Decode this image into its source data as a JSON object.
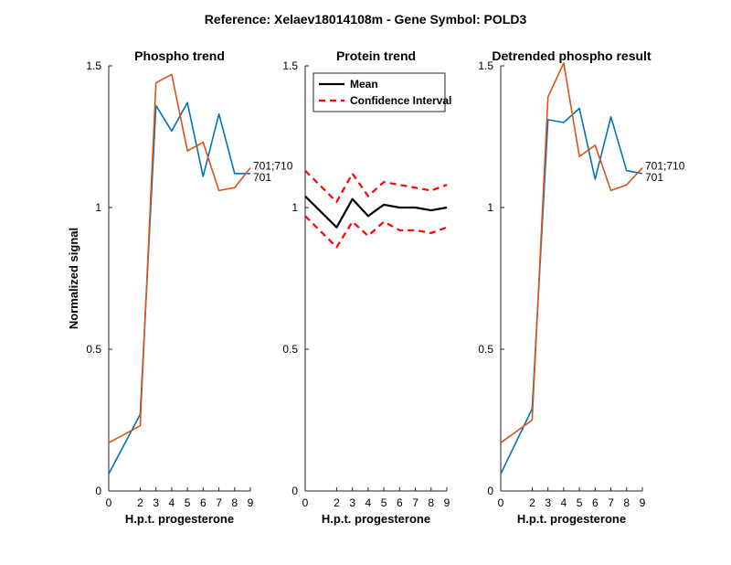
{
  "figure": {
    "suptitle": "Reference:  Xelaev18014108m - Gene Symbol:  POLD3"
  },
  "colors": {
    "series1": "#0072BD",
    "series2": "#D95319",
    "mean": "#000000",
    "ci": "#FF0000"
  },
  "chart_data": [
    {
      "type": "line",
      "title": "Phospho trend",
      "xlabel": "H.p.t. progesterone",
      "ylabel": "Normalized signal",
      "x": [
        0,
        2,
        3,
        4,
        5,
        6,
        7,
        8,
        9
      ],
      "xticks": [
        "0",
        "2",
        "3",
        "4",
        "5",
        "6",
        "7",
        "8",
        "9"
      ],
      "ylim": [
        0,
        1.5
      ],
      "yticks": [
        "0",
        "0.5",
        "1",
        "1.5"
      ],
      "series": [
        {
          "values": [
            0.06,
            0.27,
            1.36,
            1.27,
            1.37,
            1.11,
            1.33,
            1.12,
            1.12
          ]
        },
        {
          "values": [
            0.17,
            0.23,
            1.44,
            1.47,
            1.2,
            1.23,
            1.06,
            1.07,
            1.14
          ]
        }
      ],
      "annotations": [
        "701",
        "701;710"
      ]
    },
    {
      "type": "line",
      "title": "Protein trend",
      "xlabel": "H.p.t. progesterone",
      "x": [
        0,
        2,
        3,
        4,
        5,
        6,
        7,
        8,
        9
      ],
      "xticks": [
        "0",
        "2",
        "3",
        "4",
        "5",
        "6",
        "7",
        "8",
        "9"
      ],
      "ylim": [
        0,
        1.5
      ],
      "yticks": [
        "0",
        "0.5",
        "1",
        "1.5"
      ],
      "legend": {
        "position": "top-left",
        "entries": [
          "Mean",
          "Confidence Interval"
        ]
      },
      "series": [
        {
          "name": "Mean",
          "values": [
            1.04,
            0.93,
            1.03,
            0.97,
            1.01,
            1.0,
            1.0,
            0.99,
            1.0
          ]
        },
        {
          "name": "Confidence Interval",
          "values": [
            1.13,
            1.02,
            1.12,
            1.04,
            1.09,
            1.08,
            1.07,
            1.06,
            1.08
          ]
        },
        {
          "values": [
            0.97,
            0.86,
            0.95,
            0.9,
            0.95,
            0.92,
            0.92,
            0.91,
            0.93
          ]
        }
      ]
    },
    {
      "type": "line",
      "title": "Detrended phospho result",
      "xlabel": "H.p.t. progesterone",
      "x": [
        0,
        2,
        3,
        4,
        5,
        6,
        7,
        8,
        9
      ],
      "xticks": [
        "0",
        "2",
        "3",
        "4",
        "5",
        "6",
        "7",
        "8",
        "9"
      ],
      "ylim": [
        0,
        1.5
      ],
      "yticks": [
        "0",
        "0.5",
        "1",
        "1.5"
      ],
      "series": [
        {
          "values": [
            0.06,
            0.29,
            1.31,
            1.3,
            1.35,
            1.1,
            1.32,
            1.13,
            1.12
          ]
        },
        {
          "values": [
            0.17,
            0.25,
            1.39,
            1.51,
            1.18,
            1.22,
            1.06,
            1.08,
            1.14
          ]
        }
      ],
      "annotations": [
        "701",
        "701;710"
      ]
    }
  ]
}
